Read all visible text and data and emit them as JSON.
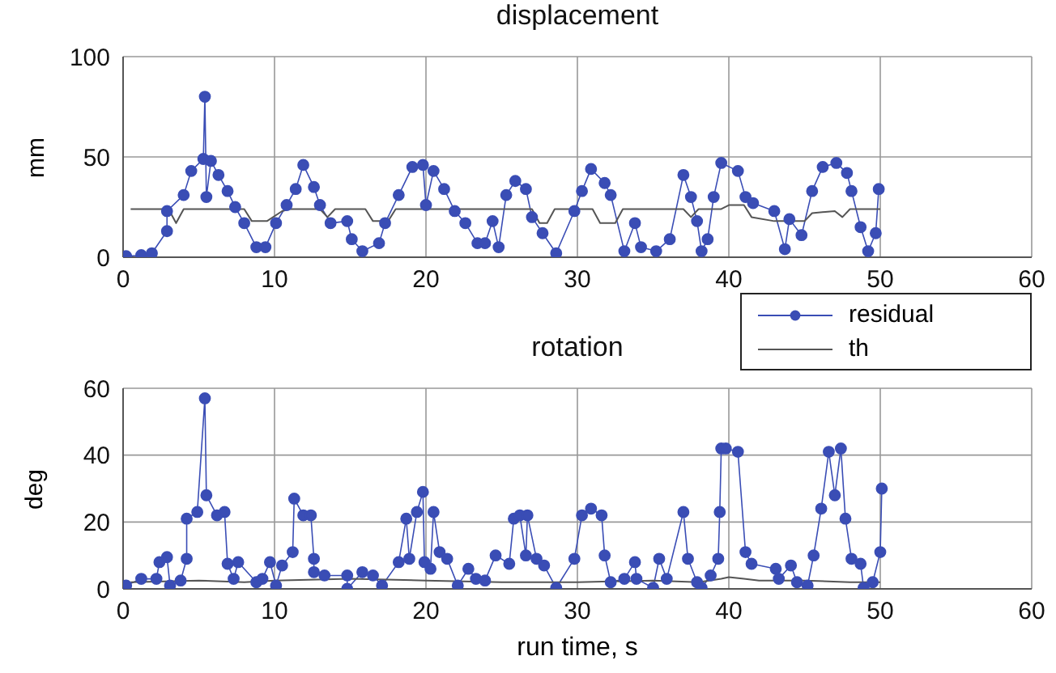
{
  "chart_data": [
    {
      "type": "line",
      "title": "displacement",
      "ylabel": "mm",
      "xlim": [
        0,
        60
      ],
      "xticks": [
        0,
        10,
        20,
        30,
        40,
        50,
        60
      ],
      "ylim": [
        0,
        100
      ],
      "yticks": [
        0,
        50,
        100
      ],
      "grid": true,
      "legend": false,
      "series": [
        {
          "color": "#3a4db5",
          "marker": "circle",
          "x": [
            0.2,
            1.2,
            1.9,
            2.9,
            2.9,
            4,
            4.5,
            5.3,
            5.4,
            5.5,
            5.8,
            6.3,
            6.9,
            7.4,
            8,
            8.8,
            9.4,
            10.1,
            10.8,
            11.4,
            11.9,
            12.6,
            13,
            13.7,
            14.8,
            15.1,
            15.8,
            16.9,
            17.3,
            18.2,
            19.1,
            19.8,
            20,
            20.5,
            21.2,
            21.9,
            22.6,
            23.4,
            23.9,
            24.4,
            24.8,
            25.3,
            25.9,
            26.6,
            27,
            27.7,
            28.6,
            29.8,
            30.3,
            30.9,
            31.8,
            32.2,
            33.1,
            33.8,
            34.2,
            35.2,
            36.1,
            37,
            37.5,
            37.9,
            38.2,
            38.6,
            39,
            39.5,
            40.6,
            41.1,
            41.6,
            43,
            43.7,
            44,
            44.8,
            45.5,
            46.2,
            47.1,
            47.8,
            48.1,
            48.7,
            49.2,
            49.7,
            49.9
          ],
          "values": [
            0.5,
            1,
            2,
            13,
            23,
            31,
            43,
            49,
            80,
            30,
            48,
            41,
            33,
            25,
            17,
            5,
            5,
            17,
            26,
            34,
            46,
            35,
            26,
            17,
            18,
            9,
            3,
            7,
            17,
            31,
            45,
            46,
            26,
            43,
            34,
            23,
            17,
            7,
            7,
            18,
            5,
            31,
            38,
            34,
            20,
            12,
            2,
            23,
            33,
            44,
            37,
            31,
            3,
            17,
            5,
            3,
            9,
            41,
            30,
            18,
            3,
            9,
            30,
            47,
            43,
            30,
            27,
            23,
            4,
            19,
            11,
            33,
            45,
            47,
            42,
            33,
            15,
            3,
            12,
            34
          ]
        },
        {
          "color": "#555555",
          "marker": "none",
          "x": [
            0.5,
            3,
            3.5,
            4,
            8,
            8.5,
            9.5,
            10.5,
            11,
            13,
            13.5,
            14,
            16,
            16.5,
            17.5,
            18,
            27,
            27.5,
            28,
            28.5,
            31,
            31.5,
            32.5,
            33,
            37,
            37.5,
            38,
            39.5,
            40,
            41,
            41.5,
            43,
            45,
            45.5,
            47,
            47.5,
            48,
            50
          ],
          "values": [
            24,
            24,
            17,
            24,
            24,
            18,
            18,
            23,
            24,
            24,
            20,
            24,
            24,
            18,
            18,
            24,
            24,
            17,
            17,
            24,
            24,
            17,
            17,
            24,
            24,
            20,
            24,
            24,
            26,
            26,
            20,
            18,
            18,
            22,
            23,
            20,
            24,
            24
          ]
        }
      ]
    },
    {
      "type": "line",
      "title": "rotation",
      "xlabel": "run time, s",
      "ylabel": "deg",
      "xlim": [
        0,
        60
      ],
      "xticks": [
        0,
        10,
        20,
        30,
        40,
        50,
        60
      ],
      "ylim": [
        0,
        60
      ],
      "yticks": [
        0,
        20,
        40,
        60
      ],
      "grid": true,
      "legend": "top right",
      "series": [
        {
          "name": "residual",
          "color": "#3a4db5",
          "marker": "circle",
          "x": [
            0.2,
            1.2,
            2.2,
            2.4,
            2.9,
            3.1,
            3.8,
            4.2,
            4.2,
            4.9,
            5.4,
            5.5,
            6.2,
            6.7,
            6.9,
            7.3,
            7.6,
            8.8,
            9.2,
            9.7,
            10.1,
            10.5,
            11.2,
            11.3,
            11.9,
            12.4,
            12.6,
            12.6,
            13.3,
            14.8,
            14.8,
            15.8,
            16.5,
            17.1,
            18.2,
            18.7,
            18.9,
            19.4,
            19.8,
            19.9,
            20.3,
            20.5,
            20.9,
            21.4,
            22.1,
            22.8,
            23.3,
            23.9,
            24.6,
            25.5,
            25.8,
            26.2,
            26.6,
            26.7,
            27.3,
            27.8,
            28.6,
            29.8,
            30.3,
            30.9,
            31.6,
            31.8,
            32.2,
            33.1,
            33.8,
            33.9,
            35,
            35.4,
            35.9,
            37,
            37.3,
            37.9,
            38.2,
            38.8,
            39.3,
            39.4,
            39.5,
            39.8,
            40.6,
            41.1,
            41.5,
            43.1,
            43.3,
            44.1,
            44.5,
            45.2,
            45.6,
            46.1,
            46.6,
            47,
            47.4,
            47.7,
            48.1,
            48.7,
            48.9,
            49.5,
            50,
            50.1
          ],
          "values": [
            1,
            3,
            3,
            8,
            9.5,
            1,
            2.5,
            9,
            21,
            23,
            57,
            28,
            22,
            23,
            7.5,
            3,
            8,
            2,
            3,
            8,
            1,
            7,
            11,
            27,
            22,
            22,
            9,
            5,
            4,
            4,
            0,
            5,
            4,
            1,
            8,
            21,
            9,
            23,
            29,
            8,
            6,
            23,
            11,
            9,
            1,
            6,
            3,
            2.5,
            10,
            7.5,
            21,
            22,
            10,
            22,
            9,
            7,
            0.3,
            9,
            22,
            24,
            22,
            10,
            2,
            3,
            8,
            3,
            0.3,
            9,
            3,
            23,
            9,
            2,
            0.3,
            4,
            9,
            23,
            42,
            42,
            41,
            11,
            7.5,
            6,
            3,
            7,
            2,
            1,
            10,
            24,
            41,
            28,
            42,
            21,
            9,
            7.5,
            0.3,
            2,
            11,
            30
          ]
        },
        {
          "name": "th",
          "color": "#555555",
          "marker": "none",
          "x": [
            0.5,
            5,
            8,
            10,
            15,
            20,
            25,
            30,
            35,
            38,
            39.5,
            40,
            41,
            42,
            45,
            48,
            50
          ],
          "values": [
            2,
            2.5,
            2,
            2.5,
            3,
            2.5,
            2,
            2,
            2.5,
            2,
            3,
            3.5,
            3,
            2.5,
            2.5,
            2,
            2
          ]
        }
      ]
    }
  ]
}
